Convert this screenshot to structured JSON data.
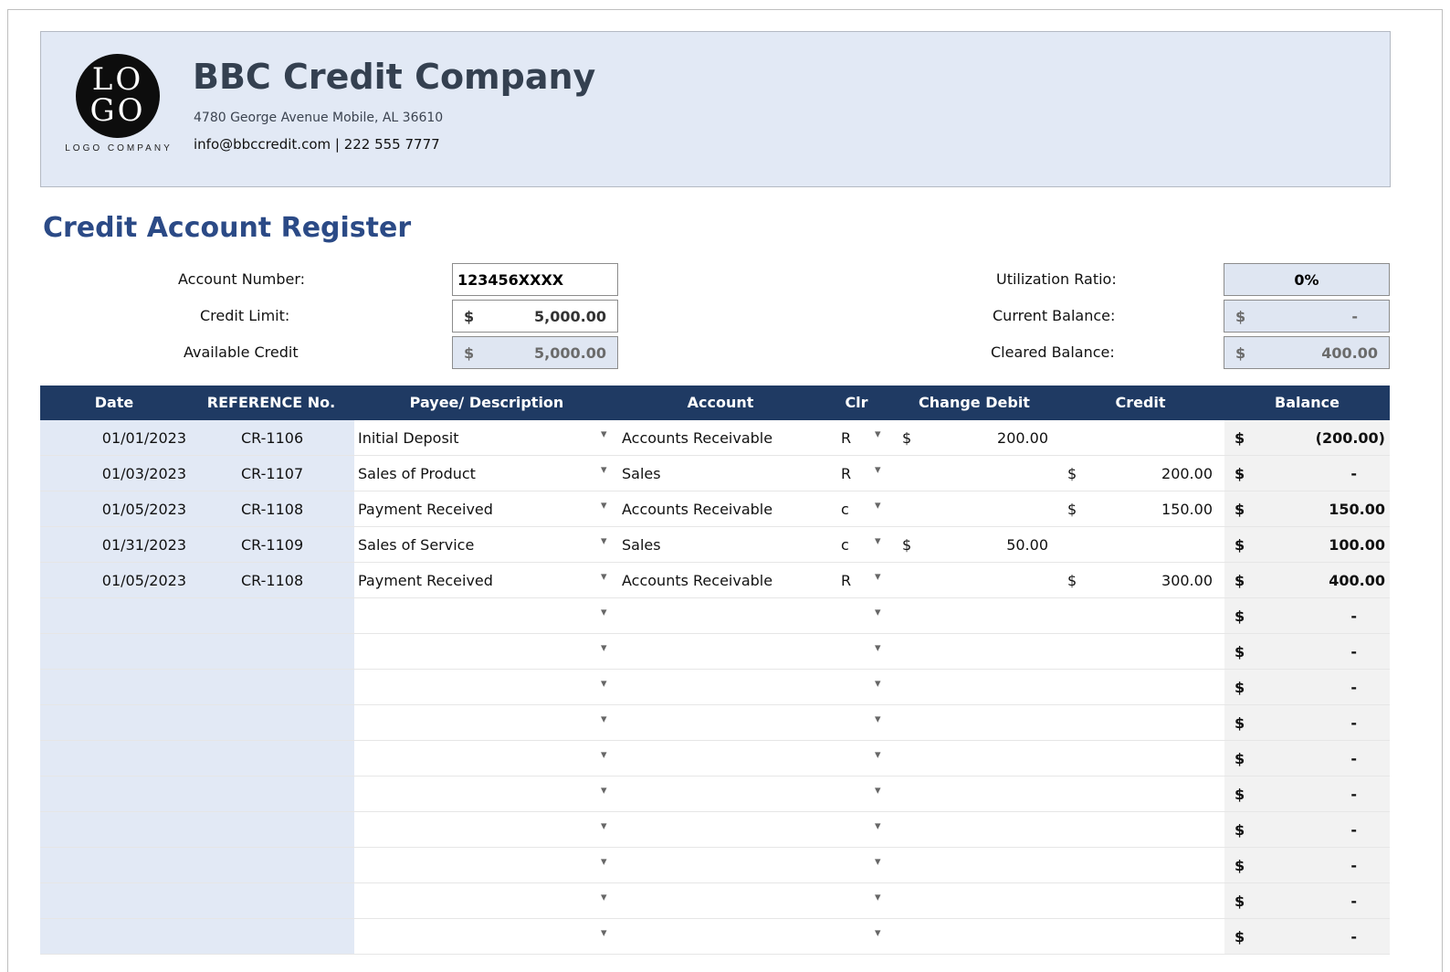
{
  "company": {
    "logo_text": "LO GO",
    "logo_subtext": "LOGO COMPANY",
    "name": "BBC Credit Company",
    "address": "4780 George Avenue Mobile, AL 36610",
    "contact": "info@bbccredit.com | 222 555 7777"
  },
  "register_title": "Credit Account Register",
  "summary": {
    "account_number_label": "Account Number:",
    "account_number": "123456XXXX",
    "credit_limit_label": "Credit Limit:",
    "credit_limit_cur": "$",
    "credit_limit": "5,000.00",
    "available_credit_label": "Available Credit",
    "available_credit_cur": "$",
    "available_credit": "5,000.00",
    "utilization_label": "Utilization Ratio:",
    "utilization": "0%",
    "current_balance_label": "Current Balance:",
    "current_balance_cur": "$",
    "current_balance": "-",
    "cleared_balance_label": "Cleared Balance:",
    "cleared_balance_cur": "$",
    "cleared_balance": "400.00"
  },
  "table": {
    "headers": [
      "Date",
      "REFERENCE No.",
      "Payee/ Description",
      "Account",
      "Clr",
      "Change Debit",
      "Credit",
      "Balance"
    ],
    "dropdown_icon": "▾",
    "rows": [
      {
        "date": "01/01/2023",
        "ref": "CR-1106",
        "payee": "Initial Deposit",
        "account": "Accounts Receivable",
        "clr": "R",
        "debit_cur": "$",
        "debit": "200.00",
        "credit_cur": "",
        "credit": "",
        "bal_cur": "$",
        "balance": "(200.00)"
      },
      {
        "date": "01/03/2023",
        "ref": "CR-1107",
        "payee": "Sales of Product",
        "account": "Sales",
        "clr": "R",
        "debit_cur": "",
        "debit": "",
        "credit_cur": "$",
        "credit": "200.00",
        "bal_cur": "$",
        "balance": "-"
      },
      {
        "date": "01/05/2023",
        "ref": "CR-1108",
        "payee": "Payment Received",
        "account": "Accounts Receivable",
        "clr": "c",
        "debit_cur": "",
        "debit": "",
        "credit_cur": "$",
        "credit": "150.00",
        "bal_cur": "$",
        "balance": "150.00"
      },
      {
        "date": "01/31/2023",
        "ref": "CR-1109",
        "payee": "Sales of Service",
        "account": "Sales",
        "clr": "c",
        "debit_cur": "$",
        "debit": "50.00",
        "credit_cur": "",
        "credit": "",
        "bal_cur": "$",
        "balance": "100.00"
      },
      {
        "date": "01/05/2023",
        "ref": "CR-1108",
        "payee": "Payment Received",
        "account": "Accounts Receivable",
        "clr": "R",
        "debit_cur": "",
        "debit": "",
        "credit_cur": "$",
        "credit": "300.00",
        "bal_cur": "$",
        "balance": "400.00"
      },
      {
        "date": "",
        "ref": "",
        "payee": "",
        "account": "",
        "clr": "",
        "debit_cur": "",
        "debit": "",
        "credit_cur": "",
        "credit": "",
        "bal_cur": "$",
        "balance": "-"
      },
      {
        "date": "",
        "ref": "",
        "payee": "",
        "account": "",
        "clr": "",
        "debit_cur": "",
        "debit": "",
        "credit_cur": "",
        "credit": "",
        "bal_cur": "$",
        "balance": "-"
      },
      {
        "date": "",
        "ref": "",
        "payee": "",
        "account": "",
        "clr": "",
        "debit_cur": "",
        "debit": "",
        "credit_cur": "",
        "credit": "",
        "bal_cur": "$",
        "balance": "-"
      },
      {
        "date": "",
        "ref": "",
        "payee": "",
        "account": "",
        "clr": "",
        "debit_cur": "",
        "debit": "",
        "credit_cur": "",
        "credit": "",
        "bal_cur": "$",
        "balance": "-"
      },
      {
        "date": "",
        "ref": "",
        "payee": "",
        "account": "",
        "clr": "",
        "debit_cur": "",
        "debit": "",
        "credit_cur": "",
        "credit": "",
        "bal_cur": "$",
        "balance": "-"
      },
      {
        "date": "",
        "ref": "",
        "payee": "",
        "account": "",
        "clr": "",
        "debit_cur": "",
        "debit": "",
        "credit_cur": "",
        "credit": "",
        "bal_cur": "$",
        "balance": "-"
      },
      {
        "date": "",
        "ref": "",
        "payee": "",
        "account": "",
        "clr": "",
        "debit_cur": "",
        "debit": "",
        "credit_cur": "",
        "credit": "",
        "bal_cur": "$",
        "balance": "-"
      },
      {
        "date": "",
        "ref": "",
        "payee": "",
        "account": "",
        "clr": "",
        "debit_cur": "",
        "debit": "",
        "credit_cur": "",
        "credit": "",
        "bal_cur": "$",
        "balance": "-"
      },
      {
        "date": "",
        "ref": "",
        "payee": "",
        "account": "",
        "clr": "",
        "debit_cur": "",
        "debit": "",
        "credit_cur": "",
        "credit": "",
        "bal_cur": "$",
        "balance": "-"
      },
      {
        "date": "",
        "ref": "",
        "payee": "",
        "account": "",
        "clr": "",
        "debit_cur": "",
        "debit": "",
        "credit_cur": "",
        "credit": "",
        "bal_cur": "$",
        "balance": "-"
      }
    ]
  },
  "colors": {
    "header_band": "#e2e9f5",
    "table_header": "#1f3a63",
    "title_blue": "#2b4a86",
    "company_name": "#344050"
  }
}
